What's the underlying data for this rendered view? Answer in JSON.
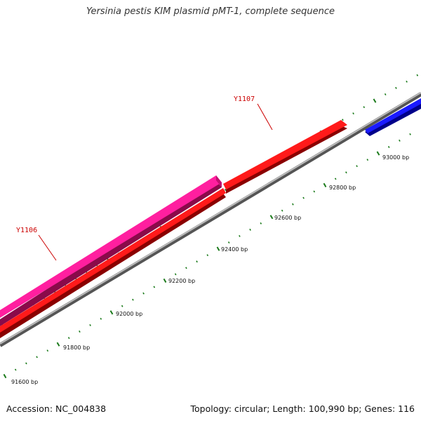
{
  "title": "Yersinia pestis KIM plasmid pMT-1, complete sequence",
  "footer": {
    "accession": "Accession: NC_004838",
    "summary": "Topology: circular; Length: 100,990 bp; Genes: 116"
  },
  "colors": {
    "forward_gene": "#ff0000",
    "reverse_gene": "#0000ff",
    "other_gene": "#ff1493",
    "backbone": "#888888",
    "tick": "#1a7a1a",
    "gene_label": "#cc0000"
  },
  "scale": {
    "labels": [
      "91600 bp",
      "91800 bp",
      "92000 bp",
      "92200 bp",
      "92400 bp",
      "92600 bp",
      "92800 bp",
      "93000 bp"
    ]
  },
  "gene_labels": [
    {
      "name": "Y1106"
    },
    {
      "name": "Y1107"
    }
  ]
}
